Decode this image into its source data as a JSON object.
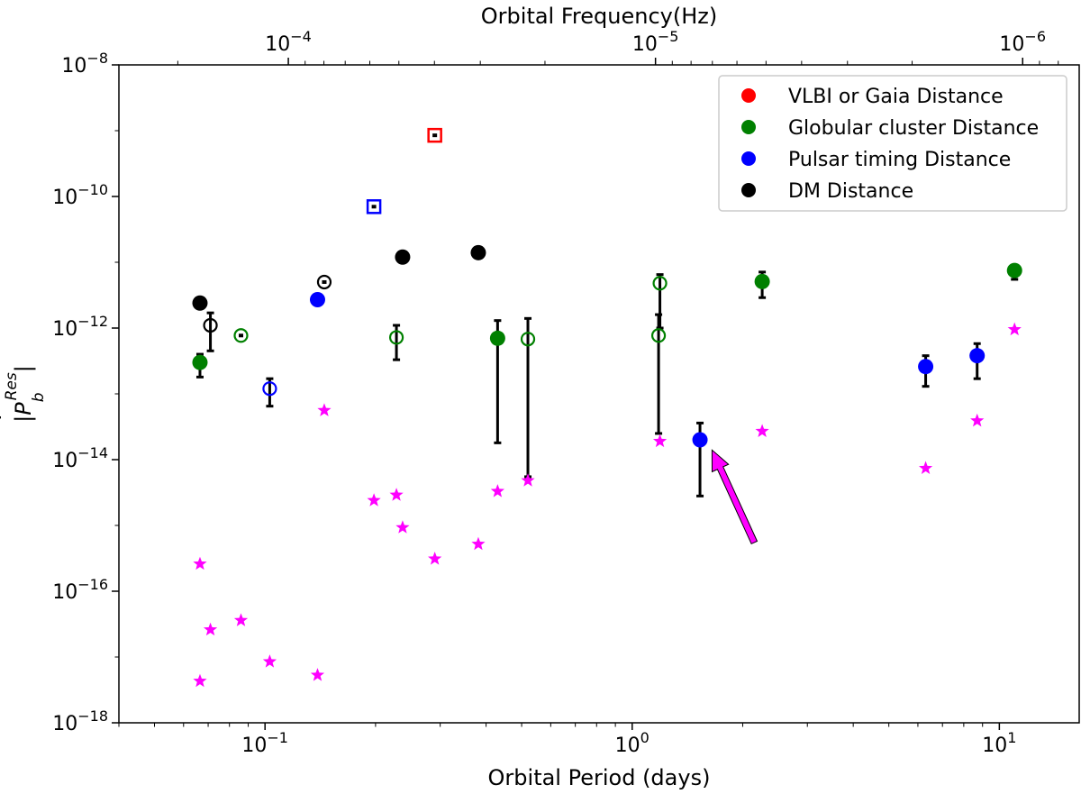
{
  "chart_data": {
    "type": "scatter",
    "title": "",
    "xlabel": "Orbital Period (days)",
    "ylabel": "|Ṗ_b^Res|",
    "top_xlabel": "Orbital Frequency(Hz)",
    "xscale": "log",
    "yscale": "log",
    "xlim": [
      0.04,
      16.5
    ],
    "ylim": [
      1e-18,
      1e-08
    ],
    "x_ticks": [
      {
        "value": 0.1,
        "base": "10",
        "exp": "−1"
      },
      {
        "value": 1,
        "base": "10",
        "exp": "0"
      },
      {
        "value": 10,
        "base": "10",
        "exp": "1"
      }
    ],
    "y_ticks": [
      {
        "value": 1e-18,
        "base": "10",
        "exp": "−18"
      },
      {
        "value": 1e-16,
        "base": "10",
        "exp": "−16"
      },
      {
        "value": 1e-14,
        "base": "10",
        "exp": "−14"
      },
      {
        "value": 1e-12,
        "base": "10",
        "exp": "−12"
      },
      {
        "value": 1e-10,
        "base": "10",
        "exp": "−10"
      },
      {
        "value": 1e-08,
        "base": "10",
        "exp": "−8"
      }
    ],
    "top_ticks": [
      {
        "freq": 0.0001,
        "base": "10",
        "exp": "−4"
      },
      {
        "freq": 1e-05,
        "base": "10",
        "exp": "−5"
      },
      {
        "freq": 1e-06,
        "base": "10",
        "exp": "−6"
      }
    ],
    "colors": {
      "vlbi": "#ff0000",
      "globular": "#008000",
      "pulsar": "#0000ff",
      "dm": "#000000",
      "star": "#ff00ff",
      "arrow": "#ff00ff"
    },
    "legend": {
      "position": "top-right",
      "entries": [
        {
          "label": "VLBI or Gaia Distance",
          "color": "#ff0000"
        },
        {
          "label": "Globular cluster Distance",
          "color": "#008000"
        },
        {
          "label": "Pulsar timing Distance",
          "color": "#0000ff"
        },
        {
          "label": "DM Distance",
          "color": "#000000"
        }
      ]
    },
    "points": [
      {
        "x": 0.0665,
        "y": 2.4e-12,
        "color": "#000000",
        "marker": "filled"
      },
      {
        "x": 0.071,
        "y": 1.1e-12,
        "color": "#000000",
        "marker": "open",
        "err": [
          4.5e-13,
          1.7e-12
        ]
      },
      {
        "x": 0.0665,
        "y": 3e-13,
        "color": "#008000",
        "marker": "filled",
        "err": [
          1.8e-13,
          4e-13
        ]
      },
      {
        "x": 0.086,
        "y": 7.7e-13,
        "color": "#008000",
        "marker": "open-dot"
      },
      {
        "x": 0.103,
        "y": 1.2e-13,
        "color": "#0000ff",
        "marker": "open",
        "err": [
          6.5e-14,
          1.7e-13
        ]
      },
      {
        "x": 0.139,
        "y": 2.7e-12,
        "color": "#0000ff",
        "marker": "filled"
      },
      {
        "x": 0.145,
        "y": 5e-12,
        "color": "#000000",
        "marker": "open-dot"
      },
      {
        "x": 0.198,
        "y": 7e-11,
        "color": "#0000ff",
        "marker": "square-dot"
      },
      {
        "x": 0.228,
        "y": 7.2e-13,
        "color": "#008000",
        "marker": "open",
        "err": [
          3.3e-13,
          1.1e-12
        ]
      },
      {
        "x": 0.237,
        "y": 1.2e-11,
        "color": "#000000",
        "marker": "filled"
      },
      {
        "x": 0.29,
        "y": 8.5e-10,
        "color": "#ff0000",
        "marker": "square-dot"
      },
      {
        "x": 0.381,
        "y": 1.4e-11,
        "color": "#000000",
        "marker": "filled"
      },
      {
        "x": 0.43,
        "y": 7e-13,
        "color": "#008000",
        "marker": "filled",
        "err": [
          1.8e-14,
          1.3e-12
        ]
      },
      {
        "x": 0.52,
        "y": 6.8e-13,
        "color": "#008000",
        "marker": "open",
        "err": [
          5.5e-15,
          1.4e-12
        ]
      },
      {
        "x": 1.19,
        "y": 4.8e-12,
        "color": "#008000",
        "marker": "open",
        "err": [
          1e-12,
          6.5e-12
        ]
      },
      {
        "x": 1.18,
        "y": 7.7e-13,
        "color": "#008000",
        "marker": "open",
        "err": [
          2.5e-14,
          1.6e-12
        ]
      },
      {
        "x": 1.53,
        "y": 2e-14,
        "color": "#0000ff",
        "marker": "filled",
        "err": [
          2.8e-15,
          3.6e-14
        ]
      },
      {
        "x": 2.26,
        "y": 5.1e-12,
        "color": "#008000",
        "marker": "filled",
        "err": [
          2.9e-12,
          7.1e-12
        ]
      },
      {
        "x": 6.3,
        "y": 2.6e-13,
        "color": "#0000ff",
        "marker": "filled",
        "err": [
          1.3e-13,
          3.8e-13
        ]
      },
      {
        "x": 8.7,
        "y": 3.8e-13,
        "color": "#0000ff",
        "marker": "filled",
        "err": [
          1.7e-13,
          5.8e-13
        ]
      },
      {
        "x": 11.0,
        "y": 7.5e-12,
        "color": "#008000",
        "marker": "filled",
        "err": [
          5.5e-12,
          8.5e-12
        ]
      }
    ],
    "stars": [
      {
        "x": 0.0665,
        "y": 2.6e-16
      },
      {
        "x": 0.0665,
        "y": 4.3e-18
      },
      {
        "x": 0.071,
        "y": 2.6e-17
      },
      {
        "x": 0.086,
        "y": 3.6e-17
      },
      {
        "x": 0.103,
        "y": 8.5e-18
      },
      {
        "x": 0.139,
        "y": 5.3e-18
      },
      {
        "x": 0.145,
        "y": 5.6e-14
      },
      {
        "x": 0.198,
        "y": 2.4e-15
      },
      {
        "x": 0.228,
        "y": 2.9e-15
      },
      {
        "x": 0.237,
        "y": 9.3e-16
      },
      {
        "x": 0.29,
        "y": 3.1e-16
      },
      {
        "x": 0.381,
        "y": 5.2e-16
      },
      {
        "x": 0.43,
        "y": 3.3e-15
      },
      {
        "x": 0.52,
        "y": 4.8e-15
      },
      {
        "x": 1.19,
        "y": 1.9e-14
      },
      {
        "x": 2.26,
        "y": 2.7e-14
      },
      {
        "x": 6.3,
        "y": 7.4e-15
      },
      {
        "x": 8.7,
        "y": 3.9e-14
      },
      {
        "x": 11.0,
        "y": 9.5e-13
      }
    ],
    "annotation": {
      "type": "arrow",
      "from": {
        "x": 2.15,
        "y": 5.5e-16
      },
      "to": {
        "x": 1.65,
        "y": 1.4e-14
      }
    }
  }
}
